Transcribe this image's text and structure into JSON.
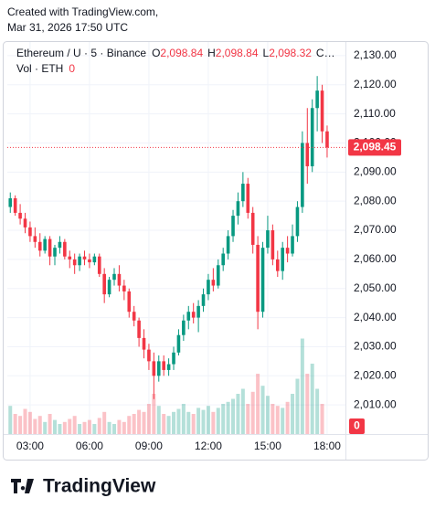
{
  "watermark": {
    "line1": "Created with TradingView.com,",
    "line2": "Mar 31, 2026 17:50 UTC"
  },
  "header": {
    "symbol": "Ethereum / U · 5 · Binance",
    "o_label": "O",
    "o_value": "2,098.84",
    "h_label": "H",
    "h_value": "2,098.84",
    "l_label": "L",
    "l_value": "2,098.32",
    "c_label": "C…",
    "vol_label": "Vol · ETH",
    "vol_value": "0"
  },
  "logo": "TradingView",
  "chart_data": {
    "type": "candlestick",
    "up_color": "#089981",
    "down_color": "#f23645",
    "candles": [
      [
        2078,
        2083,
        2076,
        2081
      ],
      [
        2081,
        2082,
        2075,
        2076
      ],
      [
        2076,
        2079,
        2072,
        2074
      ],
      [
        2074,
        2076,
        2069,
        2071
      ],
      [
        2071,
        2073,
        2066,
        2068
      ],
      [
        2068,
        2071,
        2064,
        2066
      ],
      [
        2066,
        2069,
        2061,
        2063
      ],
      [
        2063,
        2068,
        2062,
        2067
      ],
      [
        2067,
        2068,
        2058,
        2061
      ],
      [
        2061,
        2065,
        2058,
        2064
      ],
      [
        2064,
        2068,
        2062,
        2066
      ],
      [
        2066,
        2067,
        2060,
        2061
      ],
      [
        2061,
        2063,
        2057,
        2060
      ],
      [
        2060,
        2062,
        2055,
        2058
      ],
      [
        2058,
        2062,
        2056,
        2061
      ],
      [
        2061,
        2063,
        2058,
        2060
      ],
      [
        2060,
        2062,
        2057,
        2059
      ],
      [
        2059,
        2062,
        2058,
        2061
      ],
      [
        2061,
        2062,
        2054,
        2055
      ],
      [
        2055,
        2057,
        2045,
        2048
      ],
      [
        2048,
        2054,
        2047,
        2053
      ],
      [
        2053,
        2057,
        2051,
        2055
      ],
      [
        2055,
        2058,
        2049,
        2051
      ],
      [
        2051,
        2053,
        2046,
        2049
      ],
      [
        2049,
        2050,
        2040,
        2042
      ],
      [
        2042,
        2044,
        2037,
        2039
      ],
      [
        2039,
        2040,
        2030,
        2033
      ],
      [
        2033,
        2036,
        2026,
        2029
      ],
      [
        2029,
        2031,
        2022,
        2025
      ],
      [
        2025,
        2028,
        2012,
        2020
      ],
      [
        2020,
        2027,
        2018,
        2025
      ],
      [
        2025,
        2027,
        2020,
        2022
      ],
      [
        2022,
        2026,
        2020,
        2024
      ],
      [
        2024,
        2030,
        2022,
        2028
      ],
      [
        2028,
        2036,
        2027,
        2034
      ],
      [
        2034,
        2041,
        2032,
        2039
      ],
      [
        2039,
        2044,
        2036,
        2042
      ],
      [
        2042,
        2045,
        2038,
        2040
      ],
      [
        2040,
        2046,
        2035,
        2044
      ],
      [
        2044,
        2050,
        2042,
        2048
      ],
      [
        2048,
        2055,
        2046,
        2053
      ],
      [
        2053,
        2057,
        2049,
        2051
      ],
      [
        2051,
        2060,
        2050,
        2058
      ],
      [
        2058,
        2064,
        2056,
        2062
      ],
      [
        2062,
        2070,
        2060,
        2068
      ],
      [
        2068,
        2077,
        2066,
        2075
      ],
      [
        2075,
        2083,
        2072,
        2080
      ],
      [
        2080,
        2090,
        2078,
        2086
      ],
      [
        2086,
        2088,
        2074,
        2076
      ],
      [
        2076,
        2078,
        2062,
        2065
      ],
      [
        2065,
        2068,
        2036,
        2042
      ],
      [
        2042,
        2066,
        2040,
        2064
      ],
      [
        2064,
        2075,
        2062,
        2070
      ],
      [
        2070,
        2072,
        2058,
        2060
      ],
      [
        2060,
        2063,
        2054,
        2056
      ],
      [
        2056,
        2066,
        2053,
        2064
      ],
      [
        2064,
        2068,
        2059,
        2062
      ],
      [
        2062,
        2072,
        2061,
        2068
      ],
      [
        2068,
        2080,
        2066,
        2078
      ],
      [
        2078,
        2104,
        2076,
        2100
      ],
      [
        2100,
        2112,
        2086,
        2092
      ],
      [
        2092,
        2115,
        2090,
        2112
      ],
      [
        2112,
        2123,
        2104,
        2118
      ],
      [
        2118,
        2120,
        2100,
        2104
      ],
      [
        2104,
        2106,
        2095,
        2098.45
      ]
    ],
    "volumes": [
      28,
      20,
      18,
      25,
      22,
      15,
      18,
      12,
      20,
      14,
      10,
      12,
      15,
      18,
      10,
      12,
      14,
      10,
      16,
      22,
      12,
      10,
      14,
      12,
      18,
      20,
      24,
      22,
      30,
      40,
      28,
      20,
      18,
      22,
      25,
      30,
      22,
      20,
      26,
      24,
      28,
      22,
      26,
      30,
      32,
      35,
      40,
      45,
      30,
      42,
      60,
      48,
      38,
      30,
      28,
      26,
      32,
      40,
      55,
      95,
      60,
      70,
      45,
      30,
      0
    ],
    "volume_label": "0",
    "vlim": [
      0,
      100
    ],
    "xlim": [
      -0.6,
      67.7
    ],
    "xticks": [
      {
        "value": 4,
        "label": "03:00"
      },
      {
        "value": 16,
        "label": "06:00"
      },
      {
        "value": 28,
        "label": "09:00"
      },
      {
        "value": 40,
        "label": "12:00"
      },
      {
        "value": 52,
        "label": "15:00"
      },
      {
        "value": 64,
        "label": "18:00"
      }
    ],
    "ylim": [
      2000,
      2135
    ],
    "yticks": [
      {
        "value": 2010,
        "label": "2,010.00"
      },
      {
        "value": 2020,
        "label": "2,020.00"
      },
      {
        "value": 2030,
        "label": "2,030.00"
      },
      {
        "value": 2040,
        "label": "2,040.00"
      },
      {
        "value": 2050,
        "label": "2,050.00"
      },
      {
        "value": 2060,
        "label": "2,060.00"
      },
      {
        "value": 2070,
        "label": "2,070.00"
      },
      {
        "value": 2080,
        "label": "2,080.00"
      },
      {
        "value": 2090,
        "label": "2,090.00"
      },
      {
        "value": 2100,
        "label": "2,100.00"
      },
      {
        "value": 2110,
        "label": "2,110.00"
      },
      {
        "value": 2120,
        "label": "2,120.00"
      },
      {
        "value": 2130,
        "label": "2,130.00"
      }
    ],
    "last_price": {
      "value": 2098.45,
      "label": "2,098.45"
    }
  }
}
